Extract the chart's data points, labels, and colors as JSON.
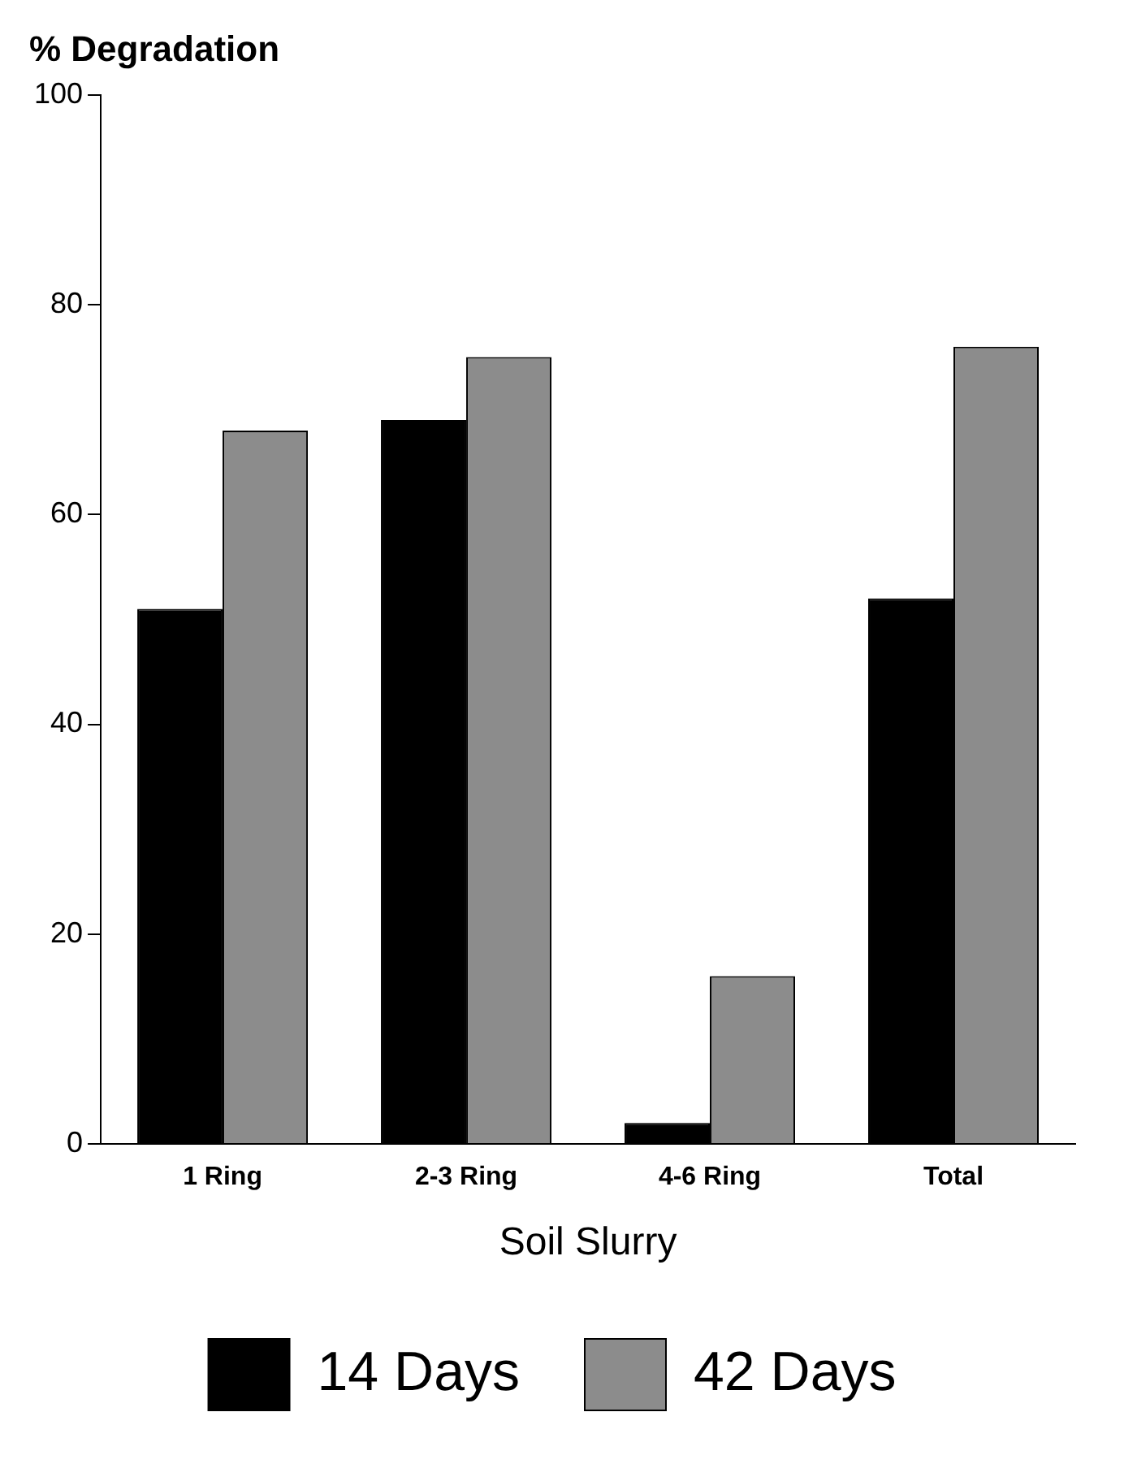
{
  "chart_data": {
    "type": "bar",
    "title": "% Degradation",
    "xlabel": "Soil Slurry",
    "categories": [
      "1 Ring",
      "2-3 Ring",
      "4-6 Ring",
      "Total"
    ],
    "series": [
      {
        "name": "14 Days",
        "color": "#000000",
        "values": [
          51,
          69,
          2,
          52
        ]
      },
      {
        "name": "42 Days",
        "color": "#8c8c8c",
        "values": [
          68,
          75,
          16,
          76
        ]
      }
    ],
    "ylim": [
      0,
      100
    ],
    "yticks": [
      0,
      20,
      40,
      60,
      80,
      100
    ],
    "grid": false,
    "legend": "bottom"
  }
}
